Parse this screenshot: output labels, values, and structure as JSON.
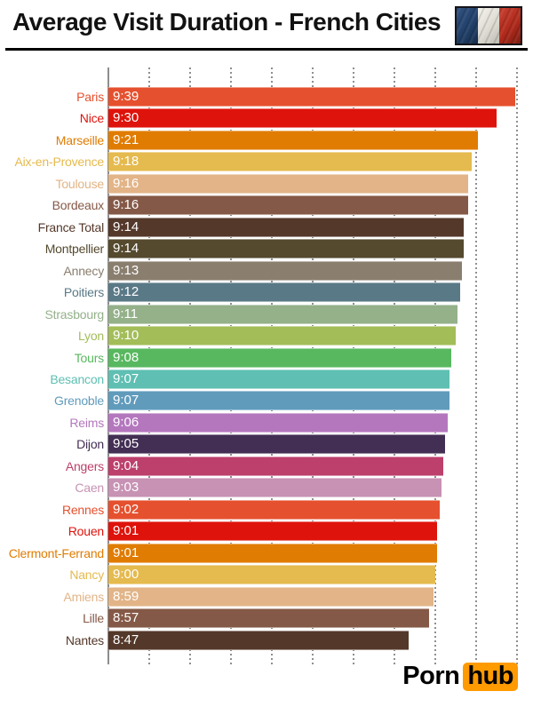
{
  "header": {
    "title": "Average Visit Duration - French Cities",
    "flag_icon": "french-tricolor"
  },
  "footer": {
    "logo_part1": "Porn",
    "logo_part2": "hub",
    "logo_accent_color": "#ff9a00"
  },
  "chart_data": {
    "type": "bar",
    "orientation": "horizontal",
    "title": "Average Visit Duration - French Cities",
    "value_format": "m:ss",
    "legend": "none",
    "grid": "dotted-vertical",
    "axis": {
      "min": "6:20",
      "max": "9:40",
      "min_seconds": 380,
      "max_seconds": 580,
      "gridline_interval_seconds": 20,
      "gridline_count": 10,
      "tick_labels_visible": false
    },
    "bars": [
      {
        "city": "Paris",
        "duration": "9:39",
        "seconds": 579,
        "color": "#e5502e"
      },
      {
        "city": "Nice",
        "duration": "9:30",
        "seconds": 570,
        "color": "#de130b"
      },
      {
        "city": "Marseille",
        "duration": "9:21",
        "seconds": 561,
        "color": "#e07c02"
      },
      {
        "city": "Aix-en-Provence",
        "duration": "9:18",
        "seconds": 558,
        "color": "#e5ba4e"
      },
      {
        "city": "Toulouse",
        "duration": "9:16",
        "seconds": 556,
        "color": "#e2b487"
      },
      {
        "city": "Bordeaux",
        "duration": "9:16",
        "seconds": 556,
        "color": "#855947"
      },
      {
        "city": "France Total",
        "duration": "9:14",
        "seconds": 554,
        "color": "#54382a"
      },
      {
        "city": "Montpellier",
        "duration": "9:14",
        "seconds": 554,
        "color": "#55492e"
      },
      {
        "city": "Annecy",
        "duration": "9:13",
        "seconds": 553,
        "color": "#8a7e6e"
      },
      {
        "city": "Poitiers",
        "duration": "9:12",
        "seconds": 552,
        "color": "#5a7987"
      },
      {
        "city": "Strasbourg",
        "duration": "9:11",
        "seconds": 551,
        "color": "#94b18a"
      },
      {
        "city": "Lyon",
        "duration": "9:10",
        "seconds": 550,
        "color": "#a3bd59"
      },
      {
        "city": "Tours",
        "duration": "9:08",
        "seconds": 548,
        "color": "#58b85f"
      },
      {
        "city": "Besancon",
        "duration": "9:07",
        "seconds": 547,
        "color": "#5ebfb2"
      },
      {
        "city": "Grenoble",
        "duration": "9:07",
        "seconds": 547,
        "color": "#609bbc"
      },
      {
        "city": "Reims",
        "duration": "9:06",
        "seconds": 546,
        "color": "#b477be"
      },
      {
        "city": "Dijon",
        "duration": "9:05",
        "seconds": 545,
        "color": "#432e54"
      },
      {
        "city": "Angers",
        "duration": "9:04",
        "seconds": 544,
        "color": "#bc3f6c"
      },
      {
        "city": "Caen",
        "duration": "9:03",
        "seconds": 543,
        "color": "#c792b4"
      },
      {
        "city": "Rennes",
        "duration": "9:02",
        "seconds": 542,
        "color": "#e5502e"
      },
      {
        "city": "Rouen",
        "duration": "9:01",
        "seconds": 541,
        "color": "#de130b"
      },
      {
        "city": "Clermont-Ferrand",
        "duration": "9:01",
        "seconds": 541,
        "color": "#e07c02"
      },
      {
        "city": "Nancy",
        "duration": "9:00",
        "seconds": 540,
        "color": "#e5ba4e"
      },
      {
        "city": "Amiens",
        "duration": "8:59",
        "seconds": 539,
        "color": "#e2b487"
      },
      {
        "city": "Lille",
        "duration": "8:57",
        "seconds": 537,
        "color": "#855947"
      },
      {
        "city": "Nantes",
        "duration": "8:47",
        "seconds": 527,
        "color": "#54382a"
      }
    ]
  }
}
